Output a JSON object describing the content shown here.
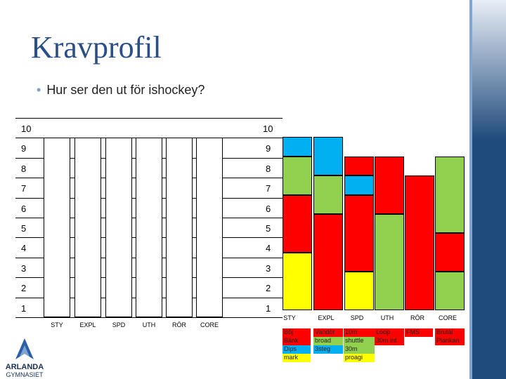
{
  "slide": {
    "title": "Kravprofil",
    "subtitle": "Hur ser den ut för ishockey?"
  },
  "colors": {
    "red": "#ff0000",
    "green": "#92d050",
    "blue": "#00b0f0",
    "yellow": "#ffff00",
    "title": "#2a4f86",
    "band": "#1f4a7c"
  },
  "left_scale": [
    "10",
    "9",
    "8",
    "7",
    "6",
    "5",
    "4",
    "3",
    "2",
    "1"
  ],
  "right_scale": [
    "10",
    "9",
    "8",
    "7",
    "6",
    "5",
    "4",
    "3",
    "2",
    "1"
  ],
  "categories_left": [
    "STY",
    "EXPL",
    "SPD",
    "UTH",
    "RÖR",
    "CORE"
  ],
  "categories_right": [
    "STY",
    "EXPL",
    "SPD",
    "UTH",
    "RÖR",
    "CORE"
  ],
  "chart_data": {
    "type": "bar",
    "categories": [
      "STY",
      "EXPL",
      "SPD",
      "UTH",
      "RÖR",
      "CORE"
    ],
    "values": [
      9,
      9,
      8,
      8,
      7,
      8
    ],
    "ylim": [
      0,
      10
    ],
    "segments": [
      [
        {
          "color": "yellow",
          "from": 0,
          "to": 3
        },
        {
          "color": "red",
          "from": 3,
          "to": 6
        },
        {
          "color": "green",
          "from": 6,
          "to": 8
        },
        {
          "color": "blue",
          "from": 8,
          "to": 9
        }
      ],
      [
        {
          "color": "red",
          "from": 0,
          "to": 5
        },
        {
          "color": "green",
          "from": 5,
          "to": 7
        },
        {
          "color": "blue",
          "from": 7,
          "to": 9
        }
      ],
      [
        {
          "color": "yellow",
          "from": 0,
          "to": 2
        },
        {
          "color": "red",
          "from": 2,
          "to": 6
        },
        {
          "color": "blue",
          "from": 6,
          "to": 7
        },
        {
          "color": "red",
          "from": 7,
          "to": 8
        }
      ],
      [
        {
          "color": "green",
          "from": 0,
          "to": 5
        },
        {
          "color": "red",
          "from": 5,
          "to": 8
        }
      ],
      [
        {
          "color": "red",
          "from": 0,
          "to": 7
        }
      ],
      [
        {
          "color": "green",
          "from": 0,
          "to": 2
        },
        {
          "color": "red",
          "from": 2,
          "to": 4
        },
        {
          "color": "green",
          "from": 4,
          "to": 8
        }
      ]
    ]
  },
  "legend_cols": [
    {
      "lines": [
        "Böj",
        "Bänk",
        "Dips",
        "mark"
      ],
      "bgs": [
        "red",
        "red",
        "blue",
        "yellow"
      ]
    },
    {
      "lines": [
        "Vandör",
        "broad",
        "3steg"
      ],
      "bgs": [
        "red",
        "green",
        "blue"
      ]
    },
    {
      "lines": [
        "10m",
        "shuttle",
        "30m",
        "proagi"
      ],
      "bgs": [
        "red",
        "green",
        "green",
        "yellow"
      ]
    },
    {
      "lines": [
        "Loop",
        "30m int"
      ],
      "bgs": [
        "red",
        "red"
      ]
    },
    {
      "lines": [
        "FMS"
      ],
      "bgs": [
        "red"
      ]
    },
    {
      "lines": [
        "Brutal",
        "Plankan"
      ],
      "bgs": [
        "red",
        "red"
      ]
    }
  ],
  "logo": {
    "name_line1": "ARLANDA",
    "name_line2": "GYMNASIET"
  }
}
